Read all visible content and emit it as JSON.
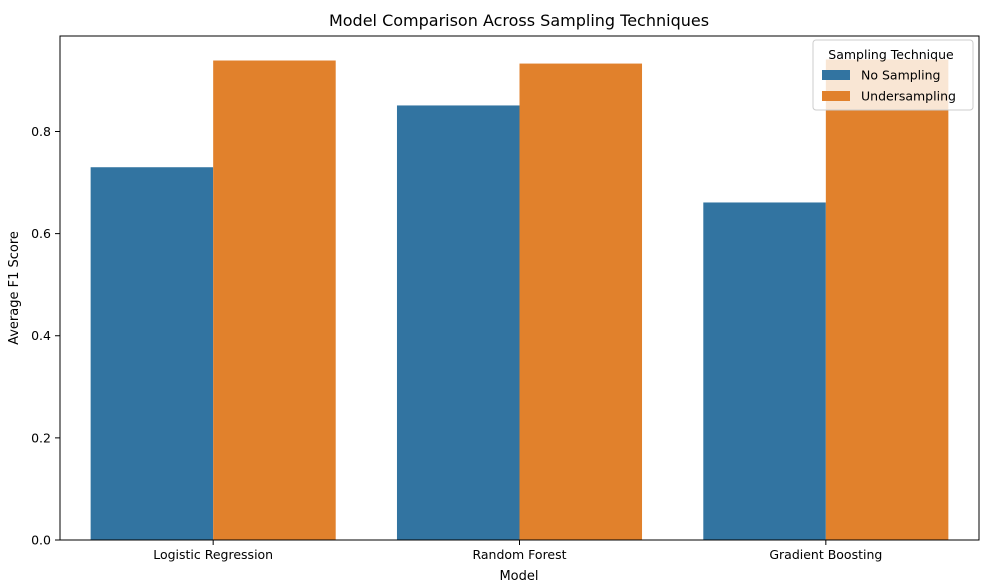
{
  "chart_data": {
    "type": "bar",
    "title": "Model Comparison Across Sampling Techniques",
    "xlabel": "Model",
    "ylabel": "Average F1 Score",
    "categories": [
      "Logistic Regression",
      "Random Forest",
      "Gradient Boosting"
    ],
    "series": [
      {
        "name": "No Sampling",
        "values": [
          0.73,
          0.851,
          0.661
        ],
        "color": "#3274a1"
      },
      {
        "name": "Undersampling",
        "values": [
          0.939,
          0.933,
          0.941
        ],
        "color": "#e1812c"
      }
    ],
    "ylim": [
      0,
      0.987
    ],
    "yticks": [
      0.0,
      0.2,
      0.4,
      0.6,
      0.8
    ],
    "ytick_labels": [
      "0.0",
      "0.2",
      "0.4",
      "0.6",
      "0.8"
    ],
    "grid": false,
    "legend": {
      "title": "Sampling Technique",
      "placement": "top-right"
    }
  }
}
